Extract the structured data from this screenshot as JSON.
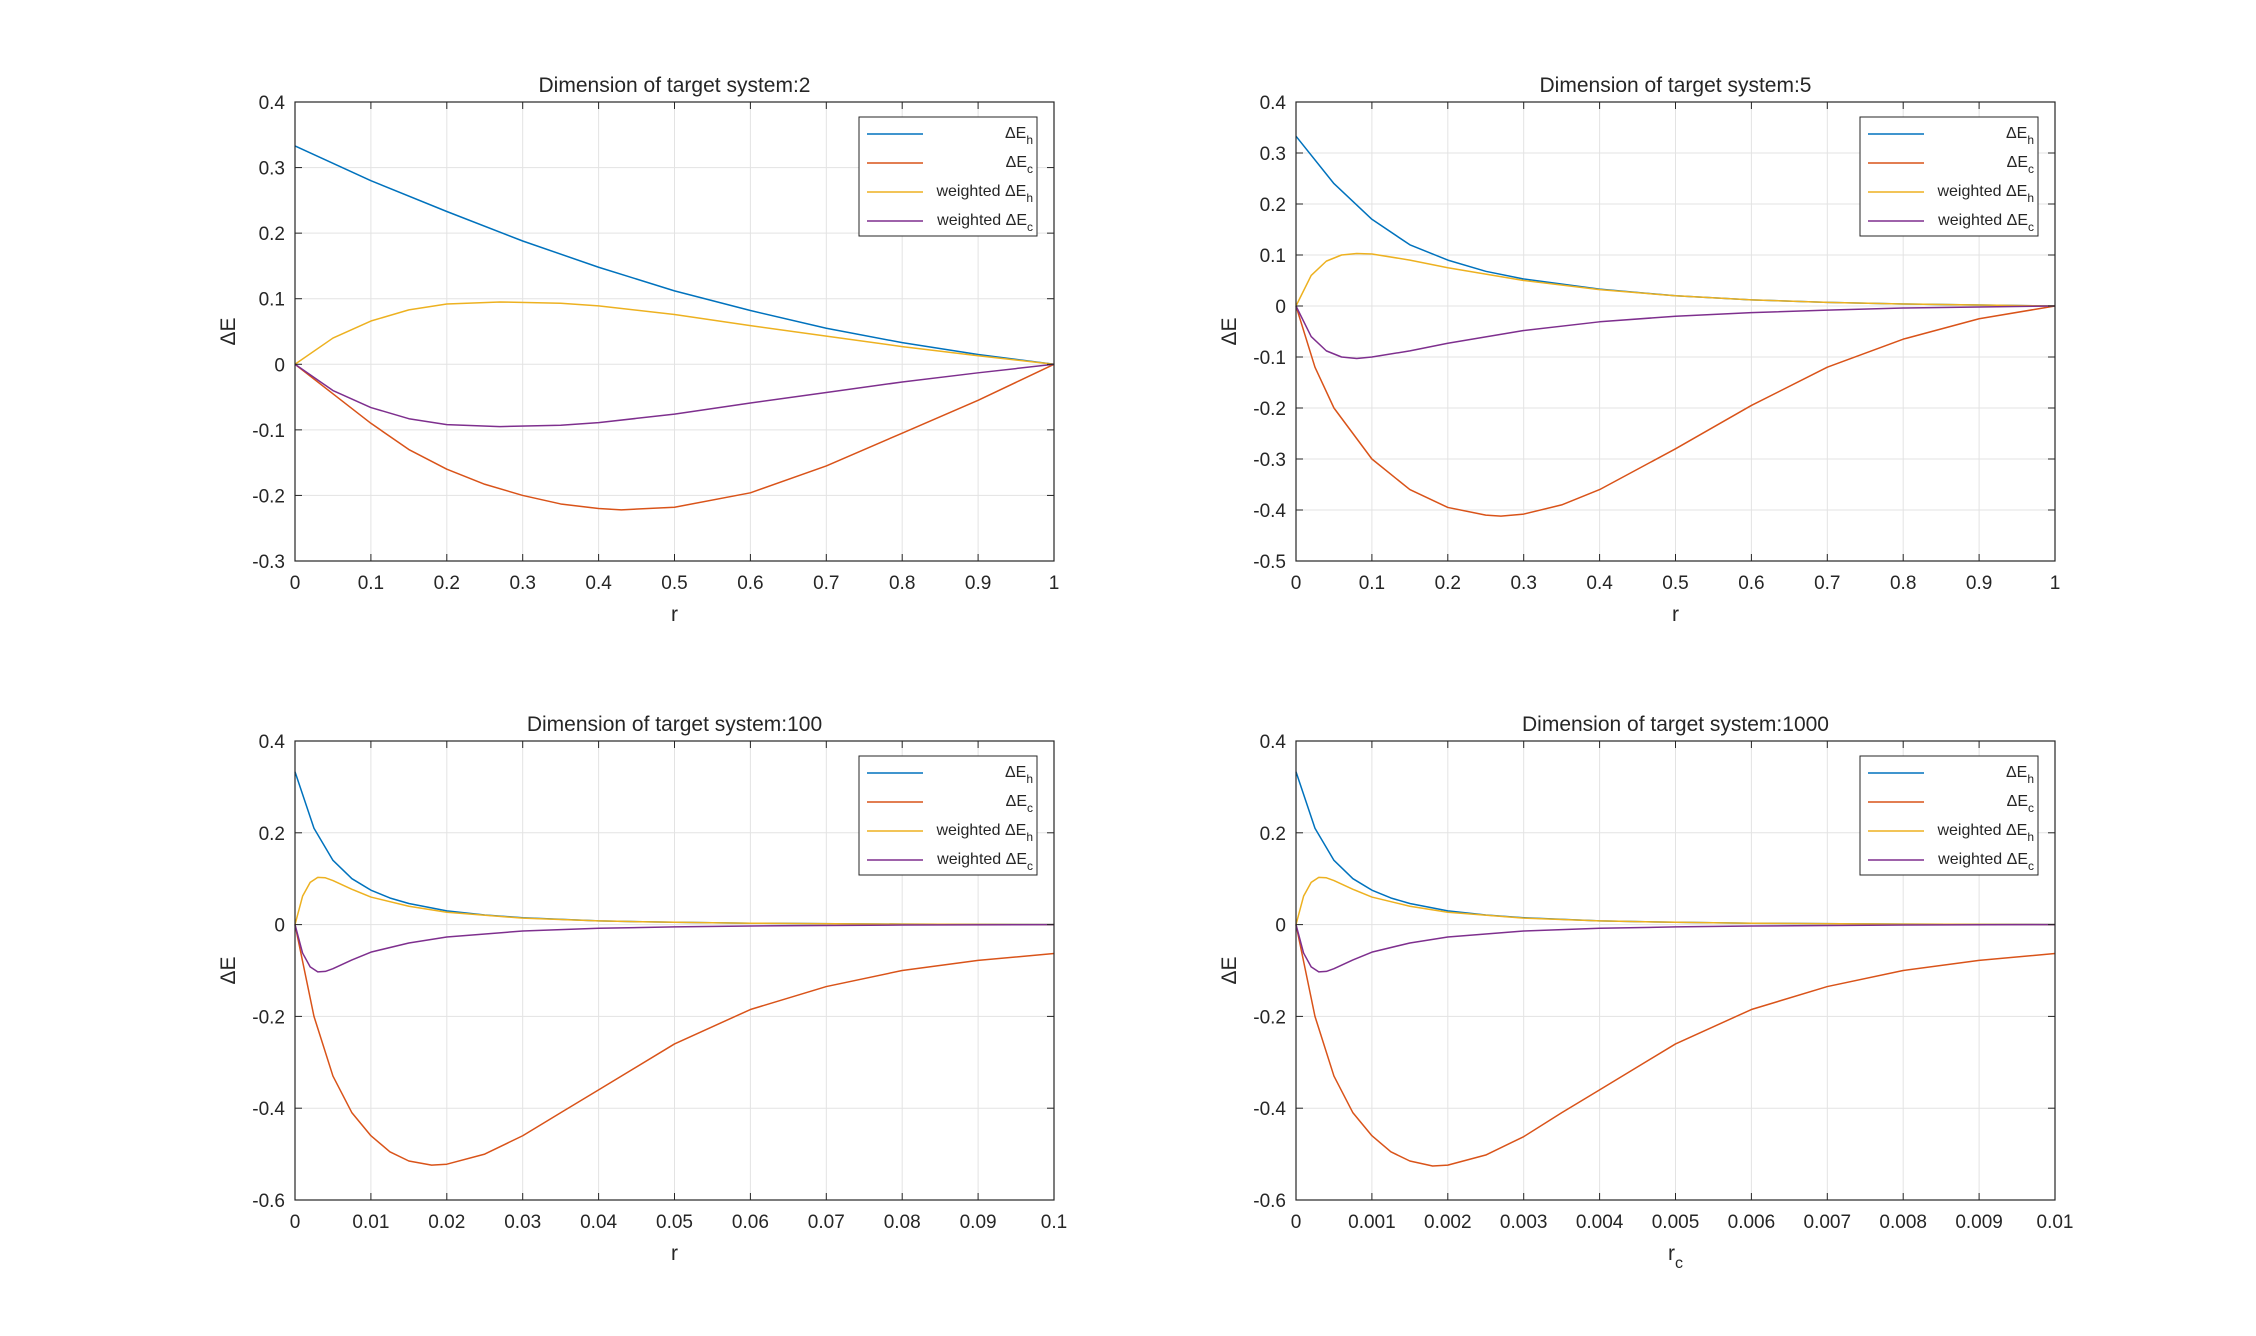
{
  "chart_data": [
    {
      "type": "line",
      "title": "Dimension of target system:2",
      "xlabel": "r",
      "xlabel_subscript": "",
      "ylabel": "ΔE",
      "xlim": [
        0,
        1
      ],
      "ylim": [
        -0.3,
        0.4
      ],
      "xticks": [
        0,
        0.1,
        0.2,
        0.3,
        0.4,
        0.5,
        0.6,
        0.7,
        0.8,
        0.9,
        1
      ],
      "xtick_labels": [
        "0",
        "0.1",
        "0.2",
        "0.3",
        "0.4",
        "0.5",
        "0.6",
        "0.7",
        "0.8",
        "0.9",
        "1"
      ],
      "yticks": [
        -0.3,
        -0.2,
        -0.1,
        0,
        0.1,
        0.2,
        0.3,
        0.4
      ],
      "ytick_labels": [
        "-0.3",
        "-0.2",
        "-0.1",
        "0",
        "0.1",
        "0.2",
        "0.3",
        "0.4"
      ],
      "grid": true,
      "legend_position": "top-right",
      "series": [
        {
          "name": "ΔE",
          "sub": "h",
          "color": "#0072BD",
          "x": [
            0,
            0.1,
            0.2,
            0.3,
            0.4,
            0.5,
            0.6,
            0.7,
            0.8,
            0.9,
            1
          ],
          "y": [
            0.333,
            0.28,
            0.233,
            0.188,
            0.148,
            0.112,
            0.082,
            0.055,
            0.033,
            0.015,
            0
          ]
        },
        {
          "name": "ΔE",
          "sub": "c",
          "color": "#D95319",
          "x": [
            0,
            0.05,
            0.1,
            0.15,
            0.2,
            0.25,
            0.3,
            0.35,
            0.4,
            0.43,
            0.5,
            0.6,
            0.7,
            0.8,
            0.9,
            1
          ],
          "y": [
            0,
            -0.045,
            -0.09,
            -0.13,
            -0.16,
            -0.183,
            -0.2,
            -0.213,
            -0.22,
            -0.222,
            -0.218,
            -0.196,
            -0.155,
            -0.105,
            -0.055,
            0
          ]
        },
        {
          "name": "weighted ΔE",
          "sub": "h",
          "color": "#EDB120",
          "x": [
            0,
            0.05,
            0.1,
            0.15,
            0.2,
            0.27,
            0.35,
            0.4,
            0.5,
            0.6,
            0.7,
            0.8,
            0.9,
            1
          ],
          "y": [
            0,
            0.04,
            0.066,
            0.083,
            0.092,
            0.095,
            0.093,
            0.089,
            0.076,
            0.059,
            0.043,
            0.027,
            0.013,
            0
          ]
        },
        {
          "name": "weighted ΔE",
          "sub": "c",
          "color": "#7E2F8E",
          "x": [
            0,
            0.05,
            0.1,
            0.15,
            0.2,
            0.27,
            0.35,
            0.4,
            0.5,
            0.6,
            0.7,
            0.8,
            0.9,
            1
          ],
          "y": [
            0,
            -0.04,
            -0.066,
            -0.083,
            -0.092,
            -0.095,
            -0.093,
            -0.089,
            -0.076,
            -0.059,
            -0.043,
            -0.027,
            -0.013,
            0
          ]
        }
      ]
    },
    {
      "type": "line",
      "title": "Dimension of target system:5",
      "xlabel": "r",
      "xlabel_subscript": "",
      "ylabel": "ΔE",
      "xlim": [
        0,
        1
      ],
      "ylim": [
        -0.5,
        0.4
      ],
      "xticks": [
        0,
        0.1,
        0.2,
        0.3,
        0.4,
        0.5,
        0.6,
        0.7,
        0.8,
        0.9,
        1
      ],
      "xtick_labels": [
        "0",
        "0.1",
        "0.2",
        "0.3",
        "0.4",
        "0.5",
        "0.6",
        "0.7",
        "0.8",
        "0.9",
        "1"
      ],
      "yticks": [
        -0.5,
        -0.4,
        -0.3,
        -0.2,
        -0.1,
        0,
        0.1,
        0.2,
        0.3,
        0.4
      ],
      "ytick_labels": [
        "-0.5",
        "-0.4",
        "-0.3",
        "-0.2",
        "-0.1",
        "0",
        "0.1",
        "0.2",
        "0.3",
        "0.4"
      ],
      "grid": true,
      "legend_position": "top-right",
      "series": [
        {
          "name": "ΔE",
          "sub": "h",
          "color": "#0072BD",
          "x": [
            0,
            0.05,
            0.1,
            0.15,
            0.2,
            0.25,
            0.3,
            0.4,
            0.5,
            0.6,
            0.7,
            0.8,
            0.9,
            1
          ],
          "y": [
            0.333,
            0.24,
            0.17,
            0.12,
            0.09,
            0.068,
            0.053,
            0.033,
            0.02,
            0.012,
            0.007,
            0.004,
            0.002,
            0
          ]
        },
        {
          "name": "ΔE",
          "sub": "c",
          "color": "#D95319",
          "x": [
            0,
            0.025,
            0.05,
            0.1,
            0.15,
            0.2,
            0.25,
            0.27,
            0.3,
            0.35,
            0.4,
            0.5,
            0.6,
            0.7,
            0.8,
            0.9,
            1
          ],
          "y": [
            0,
            -0.12,
            -0.2,
            -0.3,
            -0.36,
            -0.395,
            -0.41,
            -0.412,
            -0.408,
            -0.39,
            -0.36,
            -0.28,
            -0.195,
            -0.12,
            -0.065,
            -0.025,
            0
          ]
        },
        {
          "name": "weighted ΔE",
          "sub": "h",
          "color": "#EDB120",
          "x": [
            0,
            0.02,
            0.04,
            0.06,
            0.08,
            0.1,
            0.15,
            0.2,
            0.3,
            0.4,
            0.5,
            0.6,
            0.7,
            0.8,
            0.9,
            1
          ],
          "y": [
            0,
            0.06,
            0.088,
            0.1,
            0.103,
            0.102,
            0.09,
            0.075,
            0.05,
            0.032,
            0.02,
            0.012,
            0.007,
            0.004,
            0.002,
            0
          ]
        },
        {
          "name": "weighted ΔE",
          "sub": "c",
          "color": "#7E2F8E",
          "x": [
            0,
            0.02,
            0.04,
            0.06,
            0.08,
            0.1,
            0.15,
            0.2,
            0.3,
            0.4,
            0.5,
            0.6,
            0.7,
            0.8,
            0.9,
            1
          ],
          "y": [
            0,
            -0.06,
            -0.088,
            -0.1,
            -0.103,
            -0.1,
            -0.088,
            -0.073,
            -0.048,
            -0.031,
            -0.02,
            -0.013,
            -0.008,
            -0.004,
            -0.002,
            0
          ]
        }
      ]
    },
    {
      "type": "line",
      "title": "Dimension of target system:100",
      "xlabel": "r",
      "xlabel_subscript": "",
      "ylabel": "ΔE",
      "xlim": [
        0,
        0.1
      ],
      "ylim": [
        -0.6,
        0.4
      ],
      "xticks": [
        0,
        0.01,
        0.02,
        0.03,
        0.04,
        0.05,
        0.06,
        0.07,
        0.08,
        0.09,
        0.1
      ],
      "xtick_labels": [
        "0",
        "0.01",
        "0.02",
        "0.03",
        "0.04",
        "0.05",
        "0.06",
        "0.07",
        "0.08",
        "0.09",
        "0.1"
      ],
      "yticks": [
        -0.6,
        -0.4,
        -0.2,
        0,
        0.2,
        0.4
      ],
      "ytick_labels": [
        "-0.6",
        "-0.4",
        "-0.2",
        "0",
        "0.2",
        "0.4"
      ],
      "grid": true,
      "legend_position": "top-right",
      "series": [
        {
          "name": "ΔE",
          "sub": "h",
          "color": "#0072BD",
          "x": [
            0,
            0.0025,
            0.005,
            0.0075,
            0.01,
            0.0125,
            0.015,
            0.02,
            0.025,
            0.03,
            0.04,
            0.05,
            0.06,
            0.08,
            0.1
          ],
          "y": [
            0.333,
            0.21,
            0.14,
            0.1,
            0.075,
            0.058,
            0.046,
            0.03,
            0.021,
            0.015,
            0.008,
            0.005,
            0.003,
            0.001,
            0
          ]
        },
        {
          "name": "ΔE",
          "sub": "c",
          "color": "#D95319",
          "x": [
            0,
            0.0025,
            0.005,
            0.0075,
            0.01,
            0.0125,
            0.015,
            0.018,
            0.02,
            0.025,
            0.03,
            0.035,
            0.04,
            0.05,
            0.06,
            0.07,
            0.08,
            0.09,
            0.1
          ],
          "y": [
            0,
            -0.2,
            -0.33,
            -0.41,
            -0.46,
            -0.495,
            -0.515,
            -0.524,
            -0.522,
            -0.5,
            -0.46,
            -0.41,
            -0.36,
            -0.26,
            -0.185,
            -0.135,
            -0.1,
            -0.078,
            -0.063
          ]
        },
        {
          "name": "weighted ΔE",
          "sub": "h",
          "color": "#EDB120",
          "x": [
            0,
            0.001,
            0.002,
            0.003,
            0.004,
            0.005,
            0.0075,
            0.01,
            0.015,
            0.02,
            0.03,
            0.04,
            0.05,
            0.06,
            0.08,
            0.1
          ],
          "y": [
            0,
            0.062,
            0.092,
            0.103,
            0.102,
            0.096,
            0.077,
            0.06,
            0.04,
            0.027,
            0.014,
            0.008,
            0.005,
            0.003,
            0.001,
            0
          ]
        },
        {
          "name": "weighted ΔE",
          "sub": "c",
          "color": "#7E2F8E",
          "x": [
            0,
            0.001,
            0.002,
            0.003,
            0.004,
            0.005,
            0.0075,
            0.01,
            0.015,
            0.02,
            0.03,
            0.04,
            0.05,
            0.06,
            0.08,
            0.1
          ],
          "y": [
            0,
            -0.062,
            -0.092,
            -0.103,
            -0.102,
            -0.096,
            -0.077,
            -0.06,
            -0.04,
            -0.027,
            -0.014,
            -0.008,
            -0.005,
            -0.003,
            -0.001,
            0
          ]
        }
      ]
    },
    {
      "type": "line",
      "title": "Dimension of target system:1000",
      "xlabel": "r",
      "xlabel_subscript": "c",
      "ylabel": "ΔE",
      "xlim": [
        0,
        0.01
      ],
      "ylim": [
        -0.6,
        0.4
      ],
      "xticks": [
        0,
        0.001,
        0.002,
        0.003,
        0.004,
        0.005,
        0.006,
        0.007,
        0.008,
        0.009,
        0.01
      ],
      "xtick_labels": [
        "0",
        "0.001",
        "0.002",
        "0.003",
        "0.004",
        "0.005",
        "0.006",
        "0.007",
        "0.008",
        "0.009",
        "0.01"
      ],
      "yticks": [
        -0.6,
        -0.4,
        -0.2,
        0,
        0.2,
        0.4
      ],
      "ytick_labels": [
        "-0.6",
        "-0.4",
        "-0.2",
        "0",
        "0.2",
        "0.4"
      ],
      "grid": true,
      "legend_position": "top-right",
      "series": [
        {
          "name": "ΔE",
          "sub": "h",
          "color": "#0072BD",
          "x": [
            0,
            0.00025,
            0.0005,
            0.00075,
            0.001,
            0.00125,
            0.0015,
            0.002,
            0.0025,
            0.003,
            0.004,
            0.005,
            0.006,
            0.008,
            0.01
          ],
          "y": [
            0.333,
            0.21,
            0.14,
            0.1,
            0.075,
            0.058,
            0.046,
            0.03,
            0.021,
            0.015,
            0.008,
            0.005,
            0.003,
            0.001,
            0
          ]
        },
        {
          "name": "ΔE",
          "sub": "c",
          "color": "#D95319",
          "x": [
            0,
            0.00025,
            0.0005,
            0.00075,
            0.001,
            0.00125,
            0.0015,
            0.0018,
            0.002,
            0.0025,
            0.003,
            0.0035,
            0.004,
            0.005,
            0.006,
            0.007,
            0.008,
            0.009,
            0.01
          ],
          "y": [
            0,
            -0.2,
            -0.33,
            -0.41,
            -0.46,
            -0.495,
            -0.515,
            -0.526,
            -0.524,
            -0.502,
            -0.462,
            -0.41,
            -0.36,
            -0.26,
            -0.185,
            -0.135,
            -0.1,
            -0.078,
            -0.063
          ]
        },
        {
          "name": "weighted ΔE",
          "sub": "h",
          "color": "#EDB120",
          "x": [
            0,
            0.0001,
            0.0002,
            0.0003,
            0.0004,
            0.0005,
            0.00075,
            0.001,
            0.0015,
            0.002,
            0.003,
            0.004,
            0.005,
            0.006,
            0.008,
            0.01
          ],
          "y": [
            0,
            0.062,
            0.092,
            0.103,
            0.102,
            0.096,
            0.077,
            0.06,
            0.04,
            0.027,
            0.014,
            0.008,
            0.005,
            0.003,
            0.001,
            0
          ]
        },
        {
          "name": "weighted ΔE",
          "sub": "c",
          "color": "#7E2F8E",
          "x": [
            0,
            0.0001,
            0.0002,
            0.0003,
            0.0004,
            0.0005,
            0.00075,
            0.001,
            0.0015,
            0.002,
            0.003,
            0.004,
            0.005,
            0.006,
            0.008,
            0.01
          ],
          "y": [
            0,
            -0.062,
            -0.092,
            -0.103,
            -0.102,
            -0.096,
            -0.077,
            -0.06,
            -0.04,
            -0.027,
            -0.014,
            -0.008,
            -0.005,
            -0.003,
            -0.001,
            0
          ]
        }
      ]
    }
  ]
}
